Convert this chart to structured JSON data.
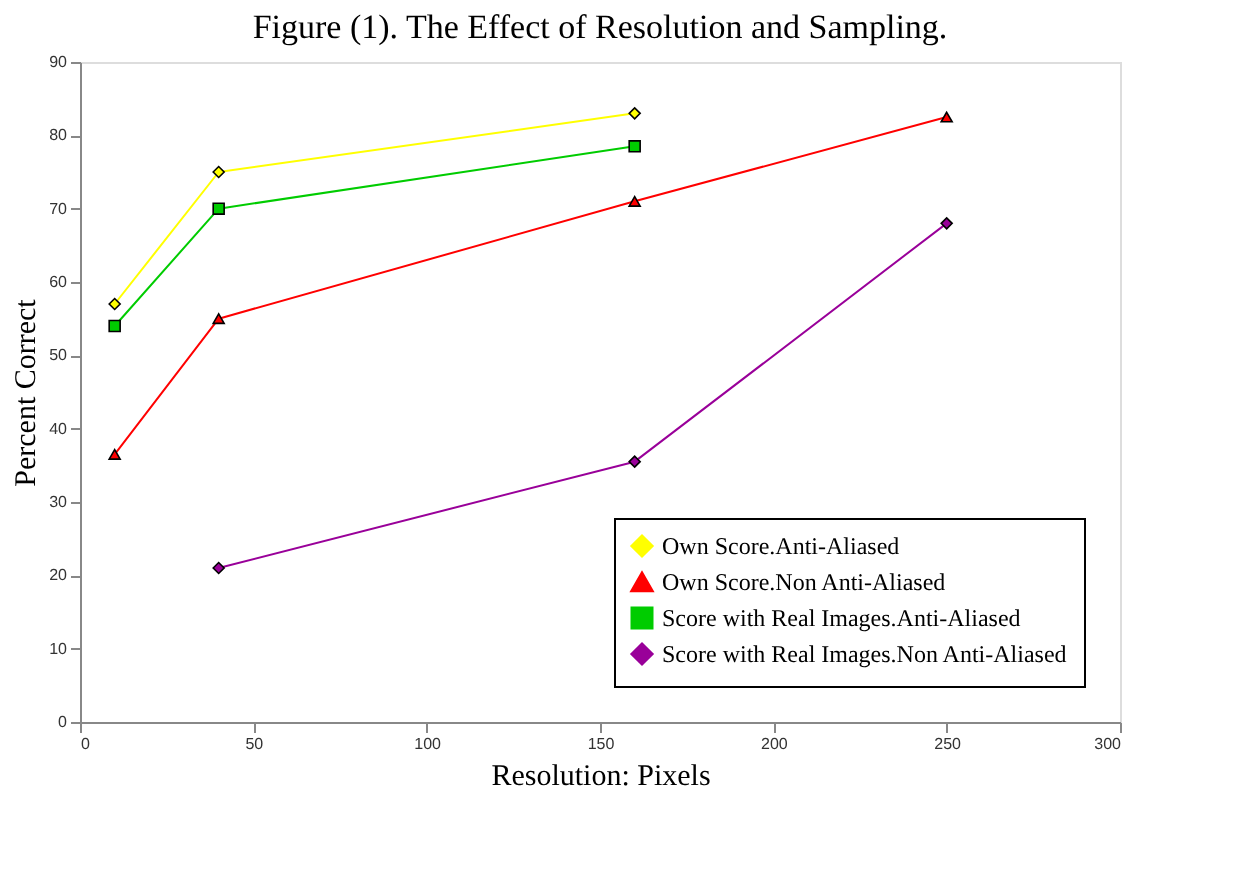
{
  "chart_data": {
    "type": "line",
    "title": "Figure (1).  The Effect of Resolution and Sampling.",
    "xlabel": "Resolution: Pixels",
    "ylabel": "Percent Correct",
    "xlim": [
      0,
      300
    ],
    "xticks": [
      0,
      50,
      100,
      150,
      200,
      250,
      300
    ],
    "ylim": [
      0,
      90
    ],
    "yticks": [
      0,
      10,
      20,
      30,
      40,
      50,
      60,
      70,
      80,
      90
    ],
    "grid": false,
    "legend": "bottom right",
    "series": [
      {
        "name": "Own Score.Anti-Aliased",
        "color": "#ffff00",
        "marker": "diamond",
        "x": [
          10,
          40,
          160
        ],
        "values": [
          57,
          75,
          83
        ]
      },
      {
        "name": "Own Score.Non Anti-Aliased",
        "color": "#ff0000",
        "marker": "triangle",
        "x": [
          10,
          40,
          160,
          250
        ],
        "values": [
          36.5,
          55,
          71,
          82.5
        ]
      },
      {
        "name": "Score with Real Images.Anti-Aliased",
        "color": "#00cc00",
        "marker": "square",
        "x": [
          10,
          40,
          160
        ],
        "values": [
          54,
          70,
          78.5
        ]
      },
      {
        "name": "Score with Real Images.Non Anti-Aliased",
        "color": "#990099",
        "marker": "diamond",
        "x": [
          40,
          160,
          250
        ],
        "values": [
          21,
          35.5,
          68
        ]
      }
    ]
  }
}
